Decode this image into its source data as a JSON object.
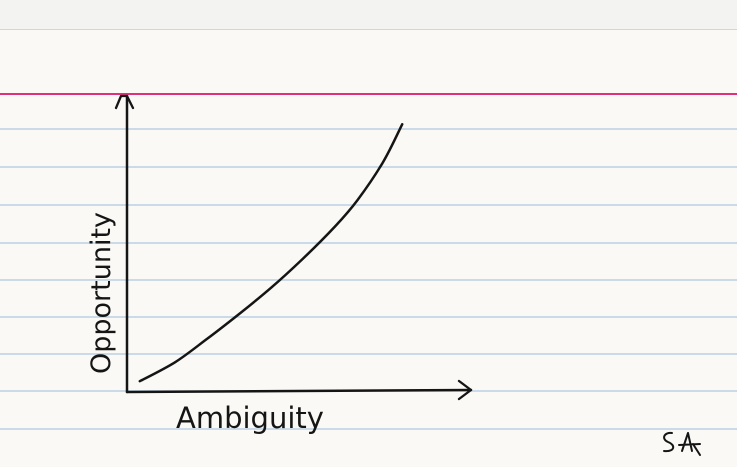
{
  "colors": {
    "paper": "#faf9f6",
    "rule_line": "#b9d0e3",
    "margin_line": "#e0307a",
    "ink": "#151515"
  },
  "chart_data": {
    "type": "line",
    "xlabel": "Ambiguity",
    "ylabel": "Opportunity",
    "grid": false,
    "xlim": [
      0,
      10
    ],
    "ylim": [
      0,
      10
    ],
    "series": [
      {
        "x": [
          0.4,
          1.5,
          2.5,
          3.5,
          4.5,
          5.5,
          6.5,
          7.2,
          8.0,
          8.6
        ],
        "y": [
          0.3,
          0.95,
          1.75,
          2.6,
          3.5,
          4.5,
          5.6,
          6.5,
          7.8,
          9.1
        ]
      }
    ]
  },
  "signature": "SA"
}
